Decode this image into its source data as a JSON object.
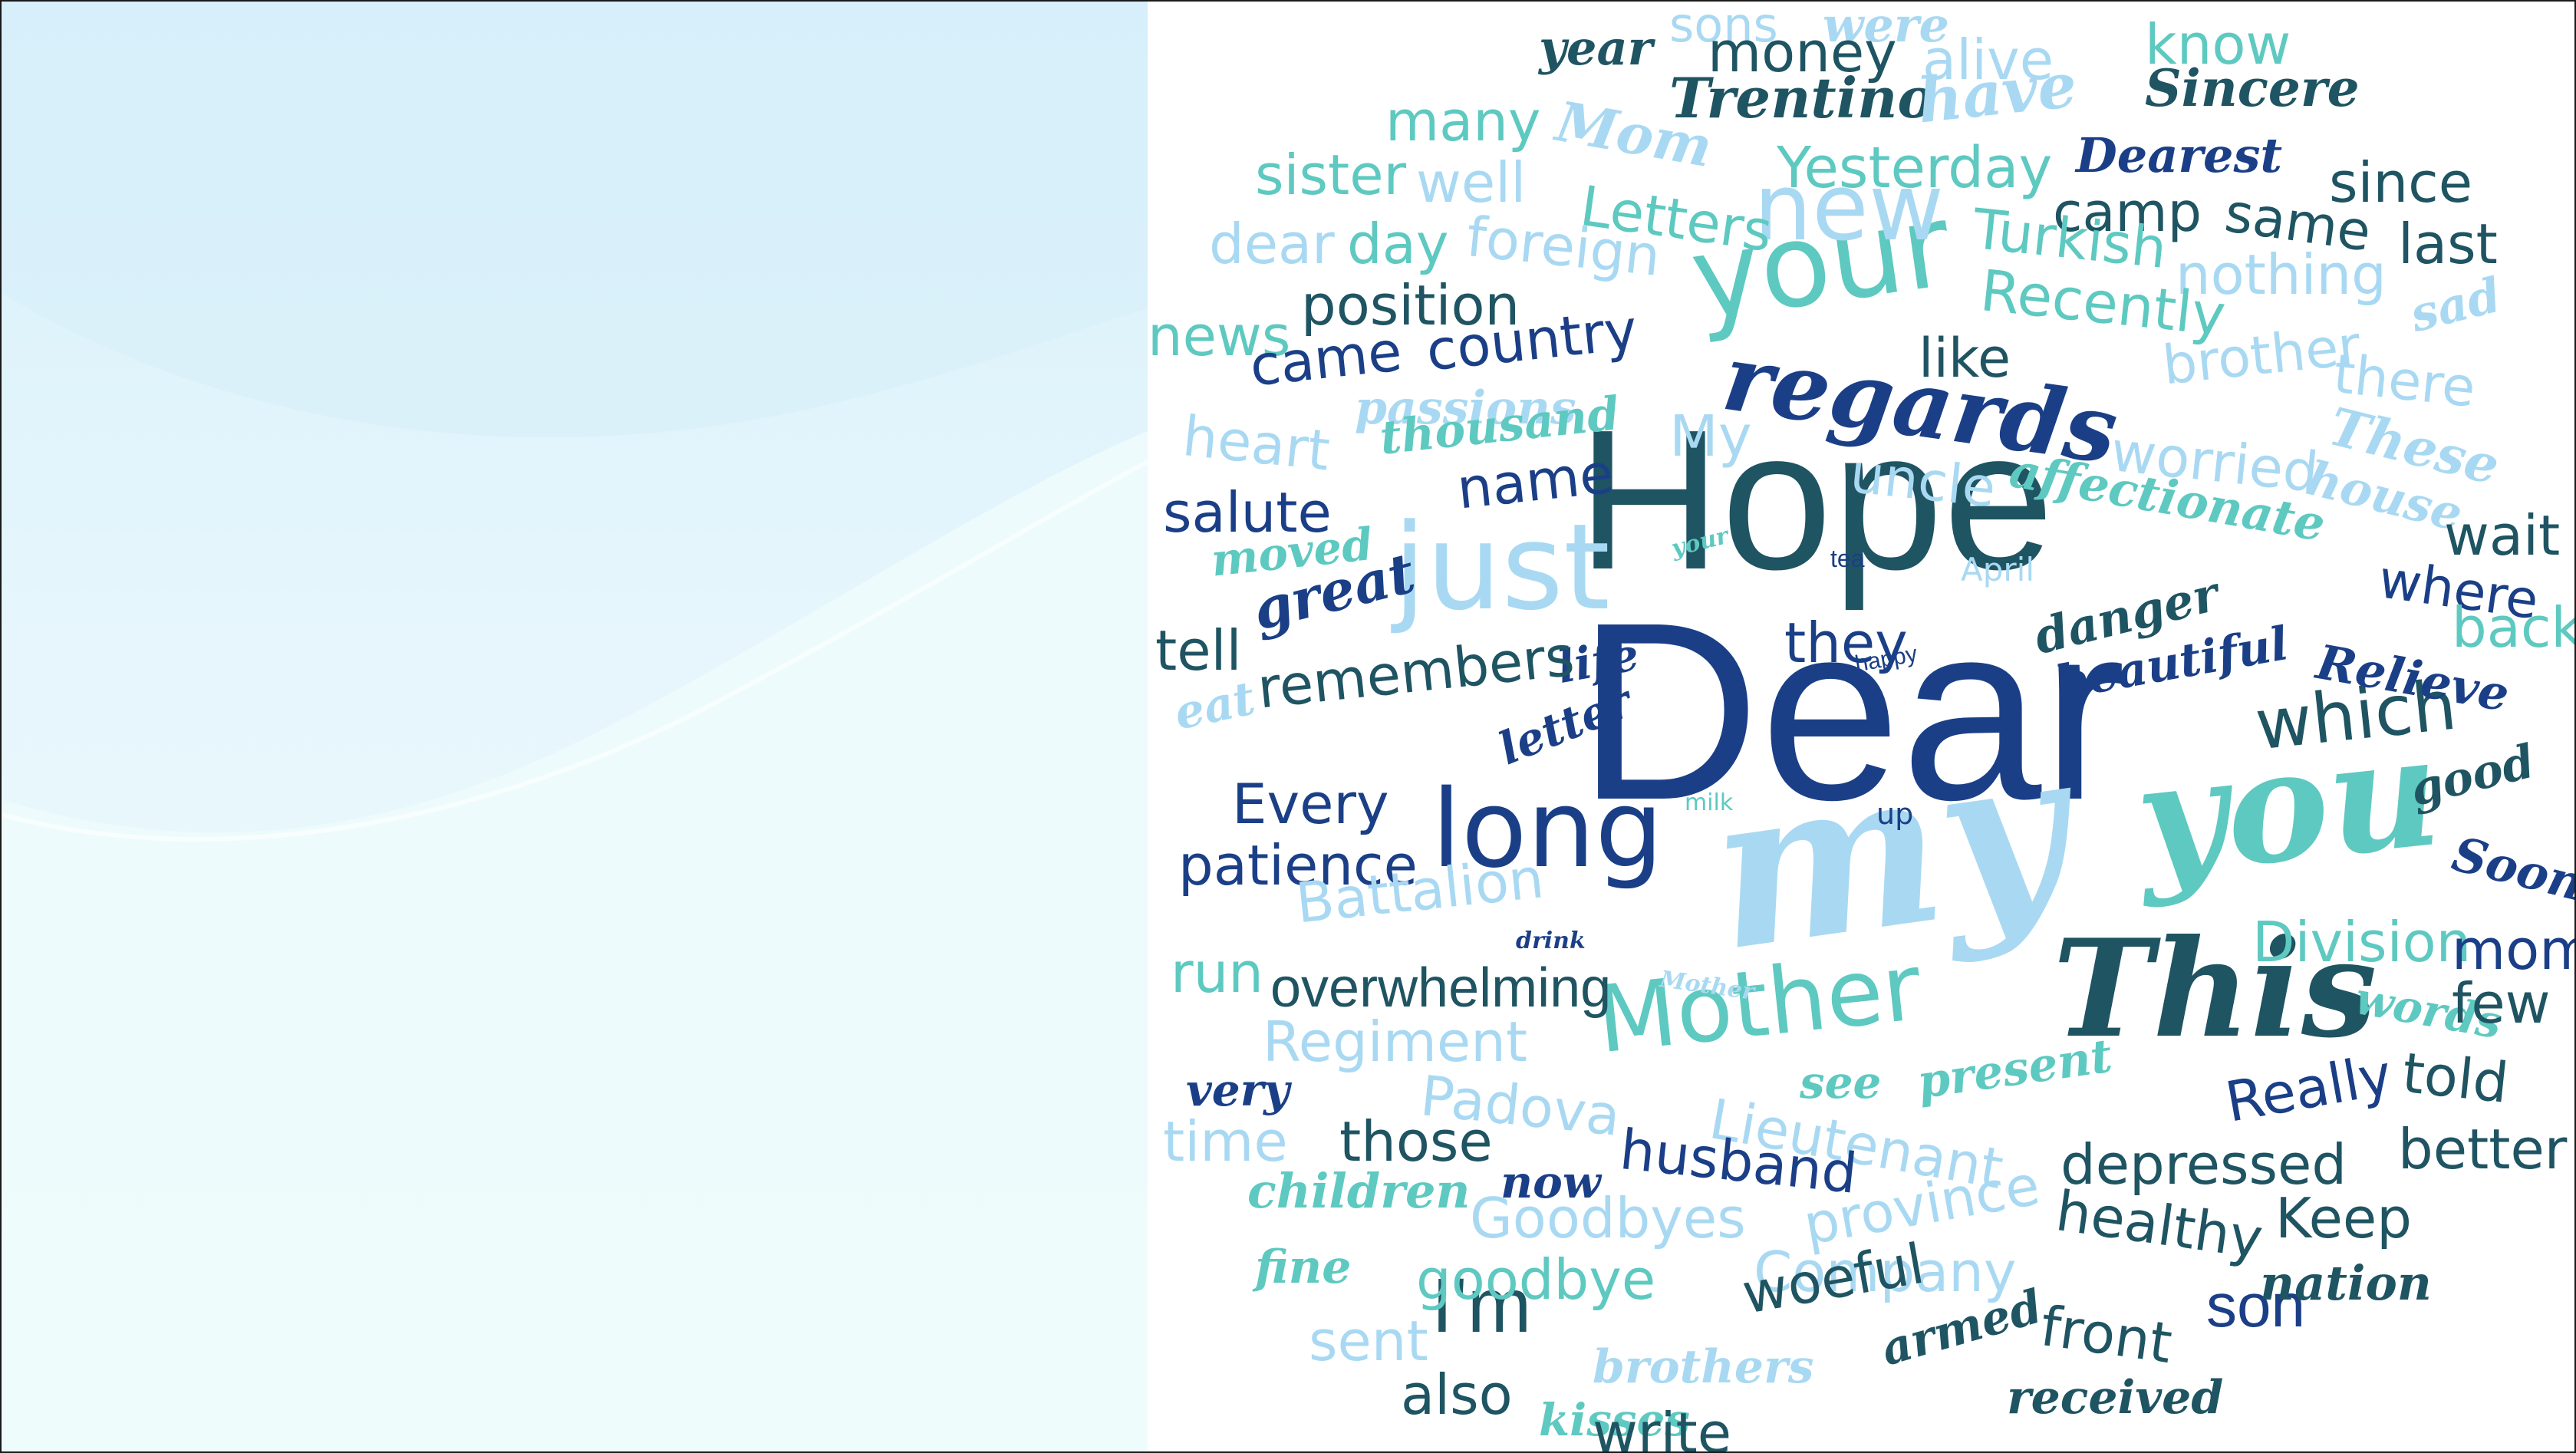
{
  "colors": {
    "navy": "#1b3f87",
    "teal_dark": "#1f5462",
    "teal": "#5ec9c0",
    "light_blue": "#a9d9f2",
    "panel_top": "#d8f0fa",
    "panel_bottom": "#effbfd"
  },
  "words": [
    {
      "text": "Dear",
      "font": "sans",
      "color": "navy",
      "size": 330,
      "rot": 0
    },
    {
      "text": "Hope",
      "font": "sans",
      "color": "teal_dark",
      "size": 260,
      "rot": 0
    },
    {
      "text": "my",
      "font": "script",
      "color": "light_blue",
      "size": 280,
      "rot": -8
    },
    {
      "text": "you",
      "font": "script",
      "color": "teal",
      "size": 200,
      "rot": -6
    },
    {
      "text": "This",
      "font": "script",
      "color": "teal_dark",
      "size": 175,
      "rot": 0
    },
    {
      "text": "your",
      "font": "raleway",
      "color": "teal",
      "size": 150,
      "rot": -8
    },
    {
      "text": "regards",
      "font": "script",
      "color": "navy",
      "size": 120,
      "rot": 8
    },
    {
      "text": "just",
      "font": "raleway",
      "color": "light_blue",
      "size": 155,
      "rot": 0
    },
    {
      "text": "long",
      "font": "raleway",
      "color": "navy",
      "size": 140,
      "rot": 0
    },
    {
      "text": "Mother",
      "font": "raleway",
      "color": "teal",
      "size": 120,
      "rot": -6
    },
    {
      "text": "new",
      "font": "raleway",
      "color": "light_blue",
      "size": 120,
      "rot": 0
    },
    {
      "text": "Yesterday",
      "font": "raleway",
      "color": "teal",
      "size": 74,
      "rot": 0
    },
    {
      "text": "which",
      "font": "raleway",
      "color": "teal_dark",
      "size": 90,
      "rot": -6
    },
    {
      "text": "I'm",
      "font": "sans",
      "color": "teal_dark",
      "size": 100,
      "rot": 0
    },
    {
      "text": "son",
      "font": "sans",
      "color": "navy",
      "size": 80,
      "rot": 0
    },
    {
      "text": "Trentino",
      "font": "script",
      "color": "teal_dark",
      "size": 72,
      "rot": 0
    },
    {
      "text": "Sincere",
      "font": "script",
      "color": "teal_dark",
      "size": 66,
      "rot": 0
    },
    {
      "text": "Dearest",
      "font": "script",
      "color": "navy",
      "size": 62,
      "rot": 0
    },
    {
      "text": "since",
      "font": "raleway",
      "color": "teal_dark",
      "size": 72,
      "rot": 0
    },
    {
      "text": "camp",
      "font": "raleway",
      "color": "teal_dark",
      "size": 70,
      "rot": 0
    },
    {
      "text": "same",
      "font": "raleway",
      "color": "teal_dark",
      "size": 70,
      "rot": 8
    },
    {
      "text": "last",
      "font": "raleway",
      "color": "teal_dark",
      "size": 72,
      "rot": 0
    },
    {
      "text": "sons",
      "font": "raleway",
      "color": "light_blue",
      "size": 62,
      "rot": 0
    },
    {
      "text": "were",
      "font": "script",
      "color": "light_blue",
      "size": 62,
      "rot": 0
    },
    {
      "text": "year",
      "font": "script",
      "color": "teal_dark",
      "size": 62,
      "rot": 0
    },
    {
      "text": "money",
      "font": "raleway",
      "color": "teal_dark",
      "size": 72,
      "rot": 0
    },
    {
      "text": "alive",
      "font": "raleway",
      "color": "light_blue",
      "size": 72,
      "rot": 0
    },
    {
      "text": "know",
      "font": "raleway",
      "color": "teal",
      "size": 72,
      "rot": 0
    },
    {
      "text": "many",
      "font": "raleway",
      "color": "teal",
      "size": 72,
      "rot": 0
    },
    {
      "text": "Mom",
      "font": "script",
      "color": "light_blue",
      "size": 72,
      "rot": 10
    },
    {
      "text": "have",
      "font": "script",
      "color": "light_blue",
      "size": 80,
      "rot": -6
    },
    {
      "text": "sister",
      "font": "raleway",
      "color": "teal",
      "size": 72,
      "rot": 0
    },
    {
      "text": "well",
      "font": "raleway",
      "color": "light_blue",
      "size": 72,
      "rot": 0
    },
    {
      "text": "Letters",
      "font": "raleway",
      "color": "teal",
      "size": 72,
      "rot": 8
    },
    {
      "text": "dear",
      "font": "raleway",
      "color": "light_blue",
      "size": 72,
      "rot": 0
    },
    {
      "text": "day",
      "font": "raleway",
      "color": "teal",
      "size": 72,
      "rot": 0
    },
    {
      "text": "foreign",
      "font": "raleway",
      "color": "light_blue",
      "size": 72,
      "rot": 6
    },
    {
      "text": "Turkish",
      "font": "raleway",
      "color": "teal",
      "size": 72,
      "rot": 6
    },
    {
      "text": "nothing",
      "font": "raleway",
      "color": "light_blue",
      "size": 72,
      "rot": 0
    },
    {
      "text": "position",
      "font": "raleway",
      "color": "teal_dark",
      "size": 72,
      "rot": 0
    },
    {
      "text": "Recently",
      "font": "raleway",
      "color": "teal",
      "size": 74,
      "rot": 6
    },
    {
      "text": "sad",
      "font": "script",
      "color": "light_blue",
      "size": 62,
      "rot": -14
    },
    {
      "text": "news",
      "font": "raleway",
      "color": "teal",
      "size": 72,
      "rot": 0
    },
    {
      "text": "country",
      "font": "raleway",
      "color": "navy",
      "size": 72,
      "rot": -6
    },
    {
      "text": "came",
      "font": "raleway",
      "color": "navy",
      "size": 72,
      "rot": -6
    },
    {
      "text": "like",
      "font": "raleway",
      "color": "teal_dark",
      "size": 70,
      "rot": 0
    },
    {
      "text": "brother",
      "font": "raleway",
      "color": "light_blue",
      "size": 70,
      "rot": -6
    },
    {
      "text": "there",
      "font": "raleway",
      "color": "light_blue",
      "size": 70,
      "rot": 6
    },
    {
      "text": "passions",
      "font": "script",
      "color": "light_blue",
      "size": 60,
      "rot": 0
    },
    {
      "text": "heart",
      "font": "raleway",
      "color": "light_blue",
      "size": 72,
      "rot": 6
    },
    {
      "text": "thousand",
      "font": "script",
      "color": "teal",
      "size": 60,
      "rot": -6
    },
    {
      "text": "My",
      "font": "raleway",
      "color": "light_blue",
      "size": 74,
      "rot": 0
    },
    {
      "text": "uncle",
      "font": "raleway",
      "color": "light_blue",
      "size": 70,
      "rot": 6
    },
    {
      "text": "worried",
      "font": "raleway",
      "color": "light_blue",
      "size": 72,
      "rot": 6
    },
    {
      "text": "These",
      "font": "script",
      "color": "light_blue",
      "size": 68,
      "rot": 14
    },
    {
      "text": "house",
      "font": "script",
      "color": "light_blue",
      "size": 62,
      "rot": 14
    },
    {
      "text": "name",
      "font": "raleway",
      "color": "navy",
      "size": 72,
      "rot": -6
    },
    {
      "text": "salute",
      "font": "raleway",
      "color": "navy",
      "size": 72,
      "rot": 0
    },
    {
      "text": "affectionate",
      "font": "script",
      "color": "teal",
      "size": 62,
      "rot": 10
    },
    {
      "text": "wait",
      "font": "raleway",
      "color": "teal_dark",
      "size": 72,
      "rot": 0
    },
    {
      "text": "moved",
      "font": "script",
      "color": "teal",
      "size": 58,
      "rot": -6
    },
    {
      "text": "your",
      "font": "script",
      "color": "teal",
      "size": 30,
      "rot": -14
    },
    {
      "text": "tea",
      "font": "sans",
      "color": "navy",
      "size": 32,
      "rot": 0
    },
    {
      "text": "April",
      "font": "raleway",
      "color": "light_blue",
      "size": 42,
      "rot": 0
    },
    {
      "text": "where",
      "font": "raleway",
      "color": "navy",
      "size": 68,
      "rot": 8
    },
    {
      "text": "danger",
      "font": "script",
      "color": "teal_dark",
      "size": 62,
      "rot": -14
    },
    {
      "text": "back",
      "font": "raleway",
      "color": "teal",
      "size": 72,
      "rot": 0
    },
    {
      "text": "tell",
      "font": "raleway",
      "color": "teal_dark",
      "size": 72,
      "rot": 0
    },
    {
      "text": "great",
      "font": "script",
      "color": "navy",
      "size": 72,
      "rot": -14
    },
    {
      "text": "life",
      "font": "script",
      "color": "navy",
      "size": 58,
      "rot": -10
    },
    {
      "text": "they",
      "font": "raleway",
      "color": "navy",
      "size": 72,
      "rot": 0
    },
    {
      "text": "happy",
      "font": "sans",
      "color": "navy",
      "size": 30,
      "rot": -10
    },
    {
      "text": "Relieve",
      "font": "script",
      "color": "navy",
      "size": 62,
      "rot": 10
    },
    {
      "text": "beautiful",
      "font": "script",
      "color": "navy",
      "size": 60,
      "rot": -10
    },
    {
      "text": "remembers",
      "font": "raleway",
      "color": "teal_dark",
      "size": 72,
      "rot": -6
    },
    {
      "text": "eat",
      "font": "script",
      "color": "light_blue",
      "size": 60,
      "rot": -12
    },
    {
      "text": "letter",
      "font": "script",
      "color": "navy",
      "size": 58,
      "rot": -22
    },
    {
      "text": "good",
      "font": "script",
      "color": "teal_dark",
      "size": 60,
      "rot": -14
    },
    {
      "text": "Every",
      "font": "raleway",
      "color": "navy",
      "size": 72,
      "rot": 0
    },
    {
      "text": "milk",
      "font": "raleway",
      "color": "teal",
      "size": 30,
      "rot": 0
    },
    {
      "text": "up",
      "font": "raleway",
      "color": "navy",
      "size": 38,
      "rot": 0
    },
    {
      "text": "Soon",
      "font": "script",
      "color": "navy",
      "size": 62,
      "rot": 14
    },
    {
      "text": "patience",
      "font": "raleway",
      "color": "navy",
      "size": 72,
      "rot": 0
    },
    {
      "text": "Battalion",
      "font": "raleway",
      "color": "light_blue",
      "size": 72,
      "rot": -6
    },
    {
      "text": "Division",
      "font": "raleway",
      "color": "teal",
      "size": 72,
      "rot": 0
    },
    {
      "text": "drink",
      "font": "script",
      "color": "navy",
      "size": 30,
      "rot": 0
    },
    {
      "text": "mom",
      "font": "raleway",
      "color": "navy",
      "size": 72,
      "rot": 0
    },
    {
      "text": "run",
      "font": "raleway",
      "color": "teal",
      "size": 72,
      "rot": 0
    },
    {
      "text": "overwhelming",
      "font": "sans",
      "color": "teal_dark",
      "size": 72,
      "rot": 0
    },
    {
      "text": "Mother",
      "font": "script",
      "color": "light_blue",
      "size": 30,
      "rot": 8
    },
    {
      "text": "words",
      "font": "script",
      "color": "teal",
      "size": 58,
      "rot": 10
    },
    {
      "text": "few",
      "font": "raleway",
      "color": "teal_dark",
      "size": 72,
      "rot": 0
    },
    {
      "text": "Regiment",
      "font": "raleway",
      "color": "light_blue",
      "size": 72,
      "rot": 0
    },
    {
      "text": "very",
      "font": "script",
      "color": "navy",
      "size": 58,
      "rot": 0
    },
    {
      "text": "see",
      "font": "script",
      "color": "teal",
      "size": 58,
      "rot": 0
    },
    {
      "text": "present",
      "font": "script",
      "color": "teal",
      "size": 60,
      "rot": -8
    },
    {
      "text": "Really",
      "font": "raleway",
      "color": "navy",
      "size": 72,
      "rot": -10
    },
    {
      "text": "told",
      "font": "raleway",
      "color": "teal_dark",
      "size": 72,
      "rot": 6
    },
    {
      "text": "Padova",
      "font": "raleway",
      "color": "light_blue",
      "size": 72,
      "rot": 6
    },
    {
      "text": "time",
      "font": "raleway",
      "color": "light_blue",
      "size": 72,
      "rot": 0
    },
    {
      "text": "those",
      "font": "raleway",
      "color": "teal_dark",
      "size": 72,
      "rot": 0
    },
    {
      "text": "Lieutenant",
      "font": "raleway",
      "color": "light_blue",
      "size": 72,
      "rot": 10
    },
    {
      "text": "husband",
      "font": "raleway",
      "color": "navy",
      "size": 72,
      "rot": 6
    },
    {
      "text": "depressed",
      "font": "raleway",
      "color": "teal_dark",
      "size": 72,
      "rot": 0
    },
    {
      "text": "better",
      "font": "raleway",
      "color": "teal_dark",
      "size": 72,
      "rot": 0
    },
    {
      "text": "now",
      "font": "script",
      "color": "navy",
      "size": 58,
      "rot": 0
    },
    {
      "text": "children",
      "font": "script",
      "color": "teal",
      "size": 62,
      "rot": 0
    },
    {
      "text": "Goodbyes",
      "font": "raleway",
      "color": "light_blue",
      "size": 72,
      "rot": 0
    },
    {
      "text": "province",
      "font": "raleway",
      "color": "light_blue",
      "size": 72,
      "rot": -10
    },
    {
      "text": "healthy",
      "font": "raleway",
      "color": "teal_dark",
      "size": 72,
      "rot": 8
    },
    {
      "text": "Keep",
      "font": "raleway",
      "color": "teal_dark",
      "size": 72,
      "rot": 0
    },
    {
      "text": "fine",
      "font": "script",
      "color": "teal",
      "size": 60,
      "rot": 0
    },
    {
      "text": "goodbye",
      "font": "raleway",
      "color": "teal",
      "size": 72,
      "rot": 0
    },
    {
      "text": "Company",
      "font": "raleway",
      "color": "light_blue",
      "size": 72,
      "rot": 0
    },
    {
      "text": "nation",
      "font": "script",
      "color": "teal_dark",
      "size": 62,
      "rot": 0
    },
    {
      "text": "woeful",
      "font": "raleway",
      "color": "teal_dark",
      "size": 72,
      "rot": -10
    },
    {
      "text": "sent",
      "font": "raleway",
      "color": "light_blue",
      "size": 72,
      "rot": 0
    },
    {
      "text": "front",
      "font": "raleway",
      "color": "teal_dark",
      "size": 72,
      "rot": 8
    },
    {
      "text": "brothers",
      "font": "script",
      "color": "light_blue",
      "size": 60,
      "rot": 0
    },
    {
      "text": "armed",
      "font": "script",
      "color": "teal_dark",
      "size": 60,
      "rot": -16
    },
    {
      "text": "received",
      "font": "script",
      "color": "teal_dark",
      "size": 60,
      "rot": 0
    },
    {
      "text": "also",
      "font": "raleway",
      "color": "teal_dark",
      "size": 72,
      "rot": 0
    },
    {
      "text": "kisses",
      "font": "script",
      "color": "teal",
      "size": 58,
      "rot": 0
    },
    {
      "text": "write",
      "font": "raleway",
      "color": "teal_dark",
      "size": 72,
      "rot": 0
    }
  ]
}
